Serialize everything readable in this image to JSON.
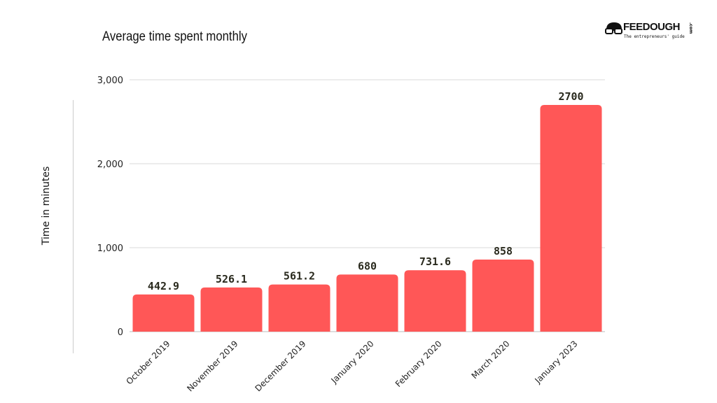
{
  "logo": {
    "text": "FEEDOUGH",
    "tagline": "The entrepreneurs' guide",
    "suffix": ".com"
  },
  "chart_data": {
    "type": "bar",
    "title": "Average time spent monthly",
    "xlabel": "",
    "ylabel": "Time in minutes",
    "categories": [
      "October 2019",
      "November 2019",
      "December 2019",
      "January 2020",
      "February 2020",
      "March 2020",
      "January 2023"
    ],
    "values": [
      442.9,
      526.1,
      561.2,
      680,
      731.6,
      858,
      2700
    ],
    "data_labels": [
      "442.9",
      "526.1",
      "561.2",
      "680",
      "731.6",
      "858",
      "2700"
    ],
    "ylim": [
      0,
      3000
    ],
    "yticks": [
      0,
      1000,
      2000,
      3000
    ],
    "ytick_labels": [
      "0",
      "1,000",
      "2,000",
      "3,000"
    ],
    "grid": true,
    "bar_color": "#ff5757"
  }
}
